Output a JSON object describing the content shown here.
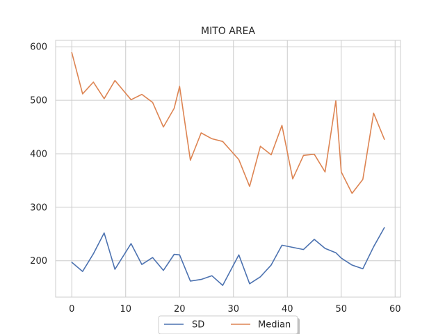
{
  "chart_data": {
    "type": "line",
    "title": "MITO AREA",
    "xlabel": "",
    "ylabel": "",
    "xlim": [
      -3,
      61
    ],
    "ylim": [
      132,
      612
    ],
    "xticks": [
      0,
      10,
      20,
      30,
      40,
      50,
      60
    ],
    "yticks": [
      200,
      300,
      400,
      500,
      600
    ],
    "grid": true,
    "legend_position": "bottom-center",
    "series": [
      {
        "name": "SD",
        "color": "#4c72b0",
        "points": [
          [
            0,
            197
          ],
          [
            2,
            180
          ],
          [
            4,
            213
          ],
          [
            6,
            252
          ],
          [
            8,
            184
          ],
          [
            11,
            232
          ],
          [
            13,
            193
          ],
          [
            15,
            206
          ],
          [
            17,
            182
          ],
          [
            19,
            212
          ],
          [
            20,
            211
          ],
          [
            22,
            162
          ],
          [
            24,
            165
          ],
          [
            26,
            172
          ],
          [
            28,
            154
          ],
          [
            31,
            211
          ],
          [
            33,
            157
          ],
          [
            35,
            170
          ],
          [
            37,
            192
          ],
          [
            39,
            229
          ],
          [
            41,
            225
          ],
          [
            43,
            221
          ],
          [
            45,
            240
          ],
          [
            47,
            223
          ],
          [
            49,
            215
          ],
          [
            50,
            205
          ],
          [
            52,
            192
          ],
          [
            54,
            185
          ],
          [
            56,
            226
          ],
          [
            58,
            262
          ]
        ]
      },
      {
        "name": "Median",
        "color": "#dd8452",
        "points": [
          [
            0,
            589
          ],
          [
            2,
            512
          ],
          [
            4,
            534
          ],
          [
            6,
            503
          ],
          [
            8,
            537
          ],
          [
            11,
            501
          ],
          [
            13,
            511
          ],
          [
            15,
            496
          ],
          [
            17,
            450
          ],
          [
            19,
            485
          ],
          [
            20,
            526
          ],
          [
            22,
            388
          ],
          [
            24,
            439
          ],
          [
            26,
            428
          ],
          [
            28,
            423
          ],
          [
            31,
            389
          ],
          [
            33,
            339
          ],
          [
            35,
            414
          ],
          [
            37,
            398
          ],
          [
            39,
            453
          ],
          [
            41,
            353
          ],
          [
            43,
            397
          ],
          [
            45,
            399
          ],
          [
            47,
            366
          ],
          [
            49,
            499
          ],
          [
            50,
            366
          ],
          [
            52,
            326
          ],
          [
            54,
            352
          ],
          [
            56,
            476
          ],
          [
            58,
            427
          ]
        ]
      }
    ]
  }
}
